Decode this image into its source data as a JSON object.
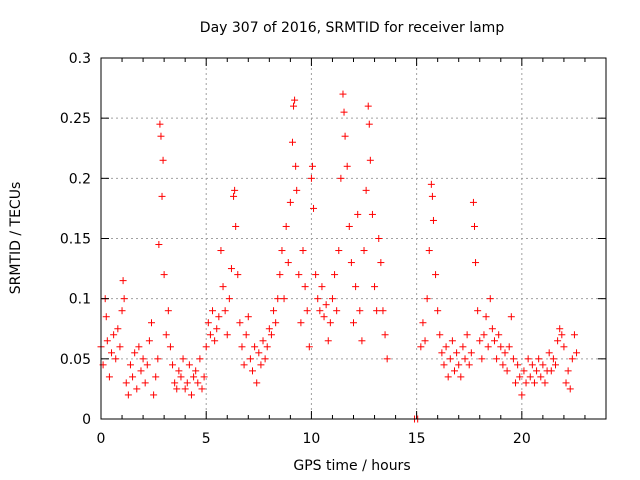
{
  "chart_data": {
    "type": "scatter",
    "title": "Day 307 of 2016, SRMTID for receiver lamp",
    "xlabel": "GPS time / hours",
    "ylabel": "SRMTID / TECUs",
    "xlim": [
      0,
      24
    ],
    "ylim": [
      0,
      0.3
    ],
    "xticks": [
      0,
      5,
      10,
      15,
      20
    ],
    "xtick_labels": [
      "0",
      "5",
      "10",
      "15",
      "20"
    ],
    "yticks": [
      0,
      0.05,
      0.1,
      0.15,
      0.2,
      0.25,
      0.3
    ],
    "ytick_labels": [
      "0",
      "0.05",
      "0.1",
      "0.15",
      "0.2",
      "0.25",
      "0.3"
    ],
    "grid": true,
    "marker": "+",
    "series": [
      {
        "name": "SRMTID",
        "color": "#ff0000",
        "points": [
          [
            0.0,
            0.06
          ],
          [
            0.1,
            0.045
          ],
          [
            0.2,
            0.1
          ],
          [
            0.25,
            0.085
          ],
          [
            0.3,
            0.065
          ],
          [
            0.4,
            0.035
          ],
          [
            0.5,
            0.055
          ],
          [
            0.6,
            0.07
          ],
          [
            0.7,
            0.05
          ],
          [
            0.8,
            0.075
          ],
          [
            0.9,
            0.06
          ],
          [
            1.0,
            0.09
          ],
          [
            1.05,
            0.115
          ],
          [
            1.1,
            0.1
          ],
          [
            1.2,
            0.03
          ],
          [
            1.3,
            0.02
          ],
          [
            1.4,
            0.045
          ],
          [
            1.5,
            0.035
          ],
          [
            1.6,
            0.055
          ],
          [
            1.7,
            0.025
          ],
          [
            1.8,
            0.06
          ],
          [
            1.9,
            0.04
          ],
          [
            2.0,
            0.05
          ],
          [
            2.1,
            0.03
          ],
          [
            2.2,
            0.045
          ],
          [
            2.3,
            0.065
          ],
          [
            2.4,
            0.08
          ],
          [
            2.5,
            0.02
          ],
          [
            2.6,
            0.035
          ],
          [
            2.7,
            0.05
          ],
          [
            2.75,
            0.145
          ],
          [
            2.8,
            0.245
          ],
          [
            2.85,
            0.235
          ],
          [
            2.9,
            0.185
          ],
          [
            2.95,
            0.215
          ],
          [
            3.0,
            0.12
          ],
          [
            3.1,
            0.07
          ],
          [
            3.2,
            0.09
          ],
          [
            3.3,
            0.06
          ],
          [
            3.4,
            0.045
          ],
          [
            3.5,
            0.03
          ],
          [
            3.6,
            0.025
          ],
          [
            3.7,
            0.04
          ],
          [
            3.8,
            0.035
          ],
          [
            3.9,
            0.05
          ],
          [
            4.0,
            0.025
          ],
          [
            4.1,
            0.03
          ],
          [
            4.2,
            0.045
          ],
          [
            4.3,
            0.02
          ],
          [
            4.4,
            0.035
          ],
          [
            4.5,
            0.04
          ],
          [
            4.6,
            0.03
          ],
          [
            4.7,
            0.05
          ],
          [
            4.8,
            0.025
          ],
          [
            4.9,
            0.035
          ],
          [
            5.0,
            0.06
          ],
          [
            5.1,
            0.08
          ],
          [
            5.2,
            0.07
          ],
          [
            5.3,
            0.09
          ],
          [
            5.4,
            0.065
          ],
          [
            5.5,
            0.075
          ],
          [
            5.6,
            0.085
          ],
          [
            5.7,
            0.14
          ],
          [
            5.8,
            0.11
          ],
          [
            5.9,
            0.09
          ],
          [
            6.0,
            0.07
          ],
          [
            6.1,
            0.1
          ],
          [
            6.2,
            0.125
          ],
          [
            6.3,
            0.185
          ],
          [
            6.35,
            0.19
          ],
          [
            6.4,
            0.16
          ],
          [
            6.5,
            0.12
          ],
          [
            6.6,
            0.08
          ],
          [
            6.7,
            0.06
          ],
          [
            6.8,
            0.045
          ],
          [
            6.9,
            0.07
          ],
          [
            7.0,
            0.085
          ],
          [
            7.1,
            0.05
          ],
          [
            7.2,
            0.04
          ],
          [
            7.3,
            0.06
          ],
          [
            7.4,
            0.03
          ],
          [
            7.5,
            0.055
          ],
          [
            7.6,
            0.045
          ],
          [
            7.7,
            0.065
          ],
          [
            7.8,
            0.05
          ],
          [
            7.9,
            0.06
          ],
          [
            8.0,
            0.075
          ],
          [
            8.1,
            0.07
          ],
          [
            8.2,
            0.09
          ],
          [
            8.3,
            0.08
          ],
          [
            8.4,
            0.1
          ],
          [
            8.5,
            0.12
          ],
          [
            8.6,
            0.14
          ],
          [
            8.7,
            0.1
          ],
          [
            8.8,
            0.16
          ],
          [
            8.9,
            0.13
          ],
          [
            9.0,
            0.18
          ],
          [
            9.1,
            0.23
          ],
          [
            9.15,
            0.26
          ],
          [
            9.2,
            0.265
          ],
          [
            9.25,
            0.21
          ],
          [
            9.3,
            0.19
          ],
          [
            9.4,
            0.12
          ],
          [
            9.5,
            0.08
          ],
          [
            9.6,
            0.14
          ],
          [
            9.7,
            0.11
          ],
          [
            9.8,
            0.09
          ],
          [
            9.9,
            0.06
          ],
          [
            10.0,
            0.2
          ],
          [
            10.05,
            0.21
          ],
          [
            10.1,
            0.175
          ],
          [
            10.2,
            0.12
          ],
          [
            10.3,
            0.1
          ],
          [
            10.4,
            0.09
          ],
          [
            10.5,
            0.11
          ],
          [
            10.6,
            0.085
          ],
          [
            10.7,
            0.095
          ],
          [
            10.8,
            0.065
          ],
          [
            10.9,
            0.08
          ],
          [
            11.0,
            0.1
          ],
          [
            11.1,
            0.12
          ],
          [
            11.2,
            0.09
          ],
          [
            11.3,
            0.14
          ],
          [
            11.4,
            0.2
          ],
          [
            11.5,
            0.27
          ],
          [
            11.55,
            0.255
          ],
          [
            11.6,
            0.235
          ],
          [
            11.7,
            0.21
          ],
          [
            11.8,
            0.16
          ],
          [
            11.9,
            0.13
          ],
          [
            12.0,
            0.08
          ],
          [
            12.1,
            0.11
          ],
          [
            12.2,
            0.17
          ],
          [
            12.3,
            0.09
          ],
          [
            12.4,
            0.065
          ],
          [
            12.5,
            0.14
          ],
          [
            12.6,
            0.19
          ],
          [
            12.7,
            0.26
          ],
          [
            12.75,
            0.245
          ],
          [
            12.8,
            0.215
          ],
          [
            12.9,
            0.17
          ],
          [
            13.0,
            0.11
          ],
          [
            13.1,
            0.09
          ],
          [
            13.2,
            0.15
          ],
          [
            13.3,
            0.13
          ],
          [
            13.4,
            0.09
          ],
          [
            13.5,
            0.07
          ],
          [
            13.6,
            0.05
          ],
          [
            14.9,
            0.0
          ],
          [
            15.05,
            0.0
          ],
          [
            15.2,
            0.06
          ],
          [
            15.3,
            0.08
          ],
          [
            15.4,
            0.065
          ],
          [
            15.5,
            0.1
          ],
          [
            15.6,
            0.14
          ],
          [
            15.7,
            0.195
          ],
          [
            15.75,
            0.185
          ],
          [
            15.8,
            0.165
          ],
          [
            15.9,
            0.12
          ],
          [
            16.0,
            0.09
          ],
          [
            16.1,
            0.07
          ],
          [
            16.2,
            0.055
          ],
          [
            16.3,
            0.045
          ],
          [
            16.4,
            0.06
          ],
          [
            16.5,
            0.035
          ],
          [
            16.6,
            0.05
          ],
          [
            16.7,
            0.065
          ],
          [
            16.8,
            0.04
          ],
          [
            16.9,
            0.055
          ],
          [
            17.0,
            0.045
          ],
          [
            17.1,
            0.035
          ],
          [
            17.2,
            0.06
          ],
          [
            17.3,
            0.05
          ],
          [
            17.4,
            0.07
          ],
          [
            17.5,
            0.045
          ],
          [
            17.6,
            0.055
          ],
          [
            17.7,
            0.18
          ],
          [
            17.75,
            0.16
          ],
          [
            17.8,
            0.13
          ],
          [
            17.9,
            0.09
          ],
          [
            18.0,
            0.065
          ],
          [
            18.1,
            0.05
          ],
          [
            18.2,
            0.07
          ],
          [
            18.3,
            0.085
          ],
          [
            18.4,
            0.06
          ],
          [
            18.5,
            0.1
          ],
          [
            18.6,
            0.075
          ],
          [
            18.7,
            0.065
          ],
          [
            18.8,
            0.05
          ],
          [
            18.9,
            0.07
          ],
          [
            19.0,
            0.06
          ],
          [
            19.1,
            0.045
          ],
          [
            19.2,
            0.055
          ],
          [
            19.3,
            0.04
          ],
          [
            19.4,
            0.06
          ],
          [
            19.5,
            0.085
          ],
          [
            19.6,
            0.05
          ],
          [
            19.7,
            0.03
          ],
          [
            19.8,
            0.045
          ],
          [
            19.9,
            0.035
          ],
          [
            20.0,
            0.02
          ],
          [
            20.1,
            0.04
          ],
          [
            20.2,
            0.03
          ],
          [
            20.3,
            0.05
          ],
          [
            20.4,
            0.035
          ],
          [
            20.5,
            0.045
          ],
          [
            20.6,
            0.03
          ],
          [
            20.7,
            0.04
          ],
          [
            20.8,
            0.05
          ],
          [
            20.9,
            0.035
          ],
          [
            21.0,
            0.045
          ],
          [
            21.1,
            0.03
          ],
          [
            21.2,
            0.04
          ],
          [
            21.3,
            0.055
          ],
          [
            21.4,
            0.04
          ],
          [
            21.5,
            0.05
          ],
          [
            21.6,
            0.045
          ],
          [
            21.7,
            0.065
          ],
          [
            21.8,
            0.075
          ],
          [
            21.9,
            0.07
          ],
          [
            22.0,
            0.06
          ],
          [
            22.1,
            0.03
          ],
          [
            22.2,
            0.04
          ],
          [
            22.3,
            0.025
          ],
          [
            22.4,
            0.05
          ],
          [
            22.5,
            0.07
          ],
          [
            22.6,
            0.055
          ]
        ]
      }
    ]
  }
}
